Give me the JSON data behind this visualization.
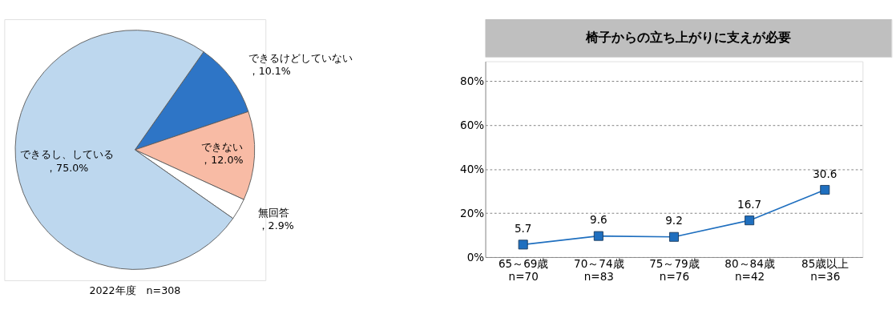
{
  "chart_data": [
    {
      "type": "pie",
      "categories": [
        "できるけどしていない",
        "できない",
        "無回答",
        "できるし、している"
      ],
      "values": [
        10.1,
        12.0,
        2.9,
        75.0
      ],
      "colors": [
        "#2e75c6",
        "#f8bba5",
        "#ffffff",
        "#bdd7ee"
      ],
      "value_labels": [
        "，10.1%",
        "，12.0%",
        "，2.9%",
        "，75.0%"
      ],
      "annotations": [
        "2022年度　n=308"
      ]
    },
    {
      "type": "line",
      "title": "椅子からの立ち上がりに支えが必要",
      "categories": [
        "65～69歳\nn=70",
        "70～74歳\nn=83",
        "75～79歳\nn=76",
        "80～84歳\nn=42",
        "85歳以上\nn=36"
      ],
      "series": [
        {
          "color": "#1f6fbf",
          "values": [
            5.7,
            9.6,
            9.2,
            16.7,
            30.6
          ]
        }
      ],
      "ylim": [
        0,
        89
      ],
      "yticks": [
        {
          "value": 0,
          "label": "0%"
        },
        {
          "value": 20,
          "label": "20%"
        },
        {
          "value": 40,
          "label": "40%"
        },
        {
          "value": 60,
          "label": "60%"
        },
        {
          "value": 80,
          "label": "80%"
        }
      ],
      "grid": "y",
      "marker": "square",
      "line_style": "solid",
      "data_labels": true
    }
  ]
}
